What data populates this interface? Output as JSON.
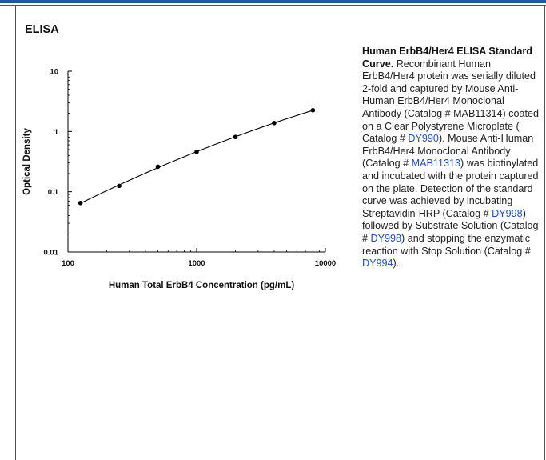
{
  "header": {
    "section_title": "ELISA"
  },
  "chart_data": {
    "type": "scatter",
    "xscale": "log",
    "yscale": "log",
    "xlabel": "Human Total ErbB4 Concentration (pg/mL)",
    "ylabel": "Optical Density",
    "xlim": [
      100,
      10000
    ],
    "ylim": [
      0.01,
      10
    ],
    "x_ticks": [
      {
        "value": 100,
        "label": "100"
      },
      {
        "value": 1000,
        "label": "1000"
      },
      {
        "value": 10000,
        "label": "10000"
      }
    ],
    "y_ticks": [
      {
        "value": 0.01,
        "label": "0.01"
      },
      {
        "value": 0.1,
        "label": "0.1"
      },
      {
        "value": 1,
        "label": "1"
      },
      {
        "value": 10,
        "label": "10"
      }
    ],
    "grid": false,
    "fit_curve": true,
    "series": [
      {
        "x": [
          125,
          250,
          500,
          1000,
          2000,
          4000,
          8000
        ],
        "y": [
          0.065,
          0.125,
          0.26,
          0.46,
          0.81,
          1.38,
          2.25
        ]
      }
    ],
    "colors": {
      "marker": "#000000",
      "line": "#000000"
    }
  },
  "caption": {
    "title": "Human ErbB4/Her4 ELISA Standard Curve.",
    "segments": [
      {
        "text": " Recombinant Human ErbB4/Her4 protein was serially diluted 2-fold and captured by Mouse Anti-Human ErbB4/Her4 Monoclonal Antibody (Catalog # MAB11314) coated on a Clear Polystyrene Microplate ( Catalog # ",
        "link": false
      },
      {
        "text": "DY990",
        "link": true
      },
      {
        "text": "). Mouse Anti-Human ErbB4/Her4 Monoclonal Antibody (Catalog # ",
        "link": false
      },
      {
        "text": "MAB11313",
        "link": true
      },
      {
        "text": ") was biotinylated and incubated with the protein captured on the plate. Detection of the standard curve was achieved by incubating Streptavidin-HRP (Catalog # ",
        "link": false
      },
      {
        "text": "DY998",
        "link": true
      },
      {
        "text": ") followed by Substrate Solution (Catalog # ",
        "link": false
      },
      {
        "text": "DY998",
        "link": true
      },
      {
        "text": ") and stopping the enzymatic reaction with Stop Solution (Catalog # ",
        "link": false
      },
      {
        "text": "DY994",
        "link": true
      },
      {
        "text": ").",
        "link": false
      }
    ],
    "link_color": "#1a4dd6"
  }
}
